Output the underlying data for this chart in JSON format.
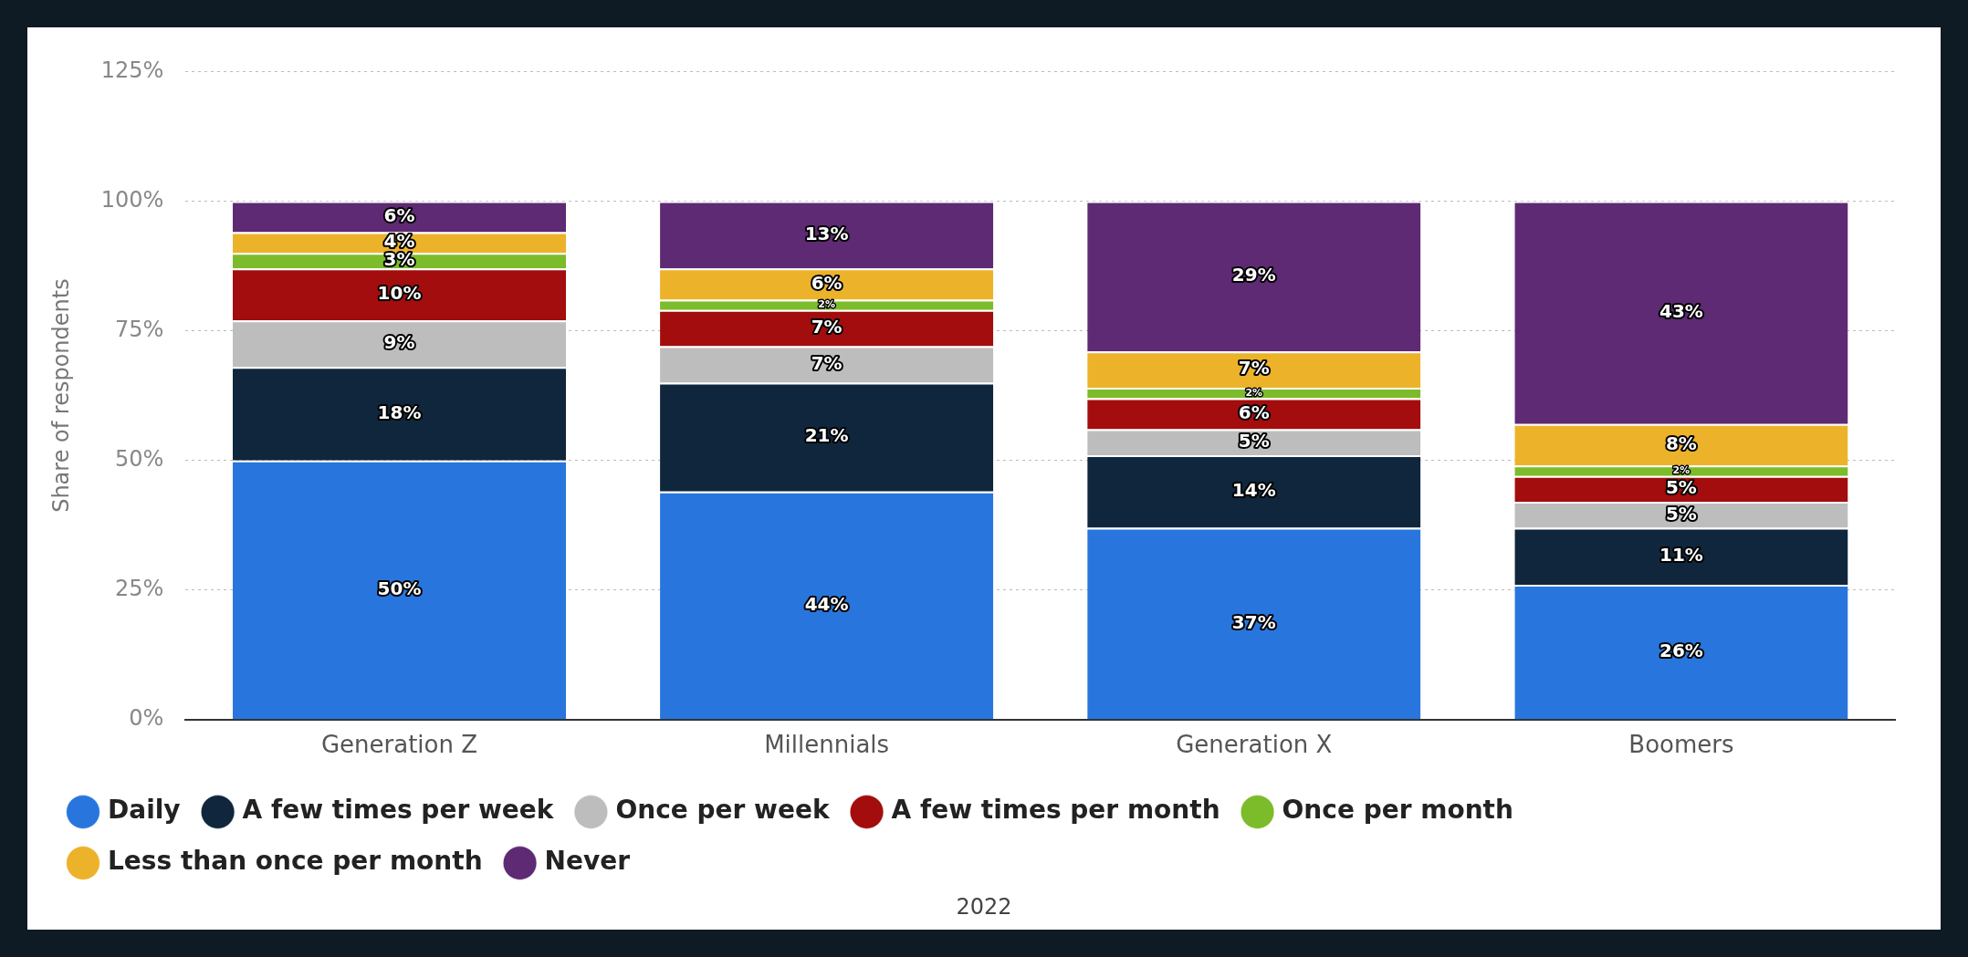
{
  "chart_data": {
    "type": "bar",
    "stacked": true,
    "ylabel": "Share of respondents",
    "categories": [
      "Generation Z",
      "Millennials",
      "Generation X",
      "Boomers"
    ],
    "series": [
      {
        "name": "Daily",
        "color": "#2876dd",
        "values": [
          50,
          44,
          37,
          26
        ],
        "value_labels": [
          "50%",
          "44%",
          "37%",
          "26%"
        ]
      },
      {
        "name": "A few times per week",
        "color": "#10263d",
        "values": [
          18,
          21,
          14,
          11
        ],
        "value_labels": [
          "18%",
          "21%",
          "14%",
          "11%"
        ]
      },
      {
        "name": "Once per week",
        "color": "#bdbdbd",
        "values": [
          9,
          7,
          5,
          5
        ],
        "value_labels": [
          "9%",
          "7%",
          "5%",
          "5%"
        ]
      },
      {
        "name": "A few times per month",
        "color": "#a30d0d",
        "values": [
          10,
          7,
          6,
          5
        ],
        "value_labels": [
          "10%",
          "7%",
          "6%",
          "5%"
        ]
      },
      {
        "name": "Once per month",
        "color": "#7cbb2a",
        "values": [
          3,
          2,
          2,
          2
        ],
        "value_labels": [
          "3%",
          "2%",
          "2%",
          "2%"
        ]
      },
      {
        "name": "Less than once per month",
        "color": "#ecb32a",
        "values": [
          4,
          6,
          7,
          8
        ],
        "value_labels": [
          "4%",
          "6%",
          "7%",
          "8%"
        ]
      },
      {
        "name": "Never",
        "color": "#5e2a73",
        "values": [
          6,
          13,
          29,
          43
        ],
        "value_labels": [
          "6%",
          "13%",
          "29%",
          "43%"
        ]
      }
    ],
    "ylim": [
      0,
      125
    ],
    "yticks": [
      {
        "value": 0,
        "label": "0%"
      },
      {
        "value": 25,
        "label": "25%"
      },
      {
        "value": 50,
        "label": "50%"
      },
      {
        "value": 75,
        "label": "75%"
      },
      {
        "value": 100,
        "label": "100%"
      },
      {
        "value": 125,
        "label": "125%"
      }
    ],
    "grid": "y",
    "legend": "bottom",
    "annotations": [
      "2022"
    ]
  }
}
